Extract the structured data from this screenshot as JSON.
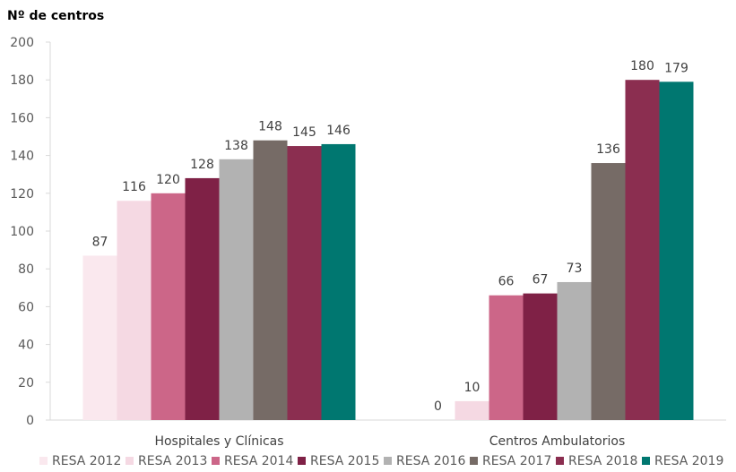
{
  "chart_data": {
    "type": "bar",
    "ylabel": "Nº de centros",
    "categories": [
      "Hospitales y Clínicas",
      "Centros Ambulatorios"
    ],
    "ylim": [
      0,
      200
    ],
    "yticks": [
      0,
      20,
      40,
      60,
      80,
      100,
      120,
      140,
      160,
      180,
      200
    ],
    "grid": false,
    "legend_position": "bottom",
    "series": [
      {
        "name": "RESA 2012",
        "color": "#fae8ee",
        "values": [
          87,
          0
        ]
      },
      {
        "name": "RESA 2013",
        "color": "#f5d9e3",
        "values": [
          116,
          10
        ]
      },
      {
        "name": "RESA 2014",
        "color": "#cc6688",
        "values": [
          120,
          66
        ]
      },
      {
        "name": "RESA 2015",
        "color": "#7f2146",
        "values": [
          128,
          67
        ]
      },
      {
        "name": "RESA 2016",
        "color": "#b2b2b2",
        "values": [
          138,
          73
        ]
      },
      {
        "name": "RESA 2017",
        "color": "#766b66",
        "values": [
          148,
          136
        ]
      },
      {
        "name": "RESA 2018",
        "color": "#8b2e50",
        "values": [
          145,
          180
        ]
      },
      {
        "name": "RESA 2019",
        "color": "#007770",
        "values": [
          146,
          179
        ]
      }
    ]
  }
}
